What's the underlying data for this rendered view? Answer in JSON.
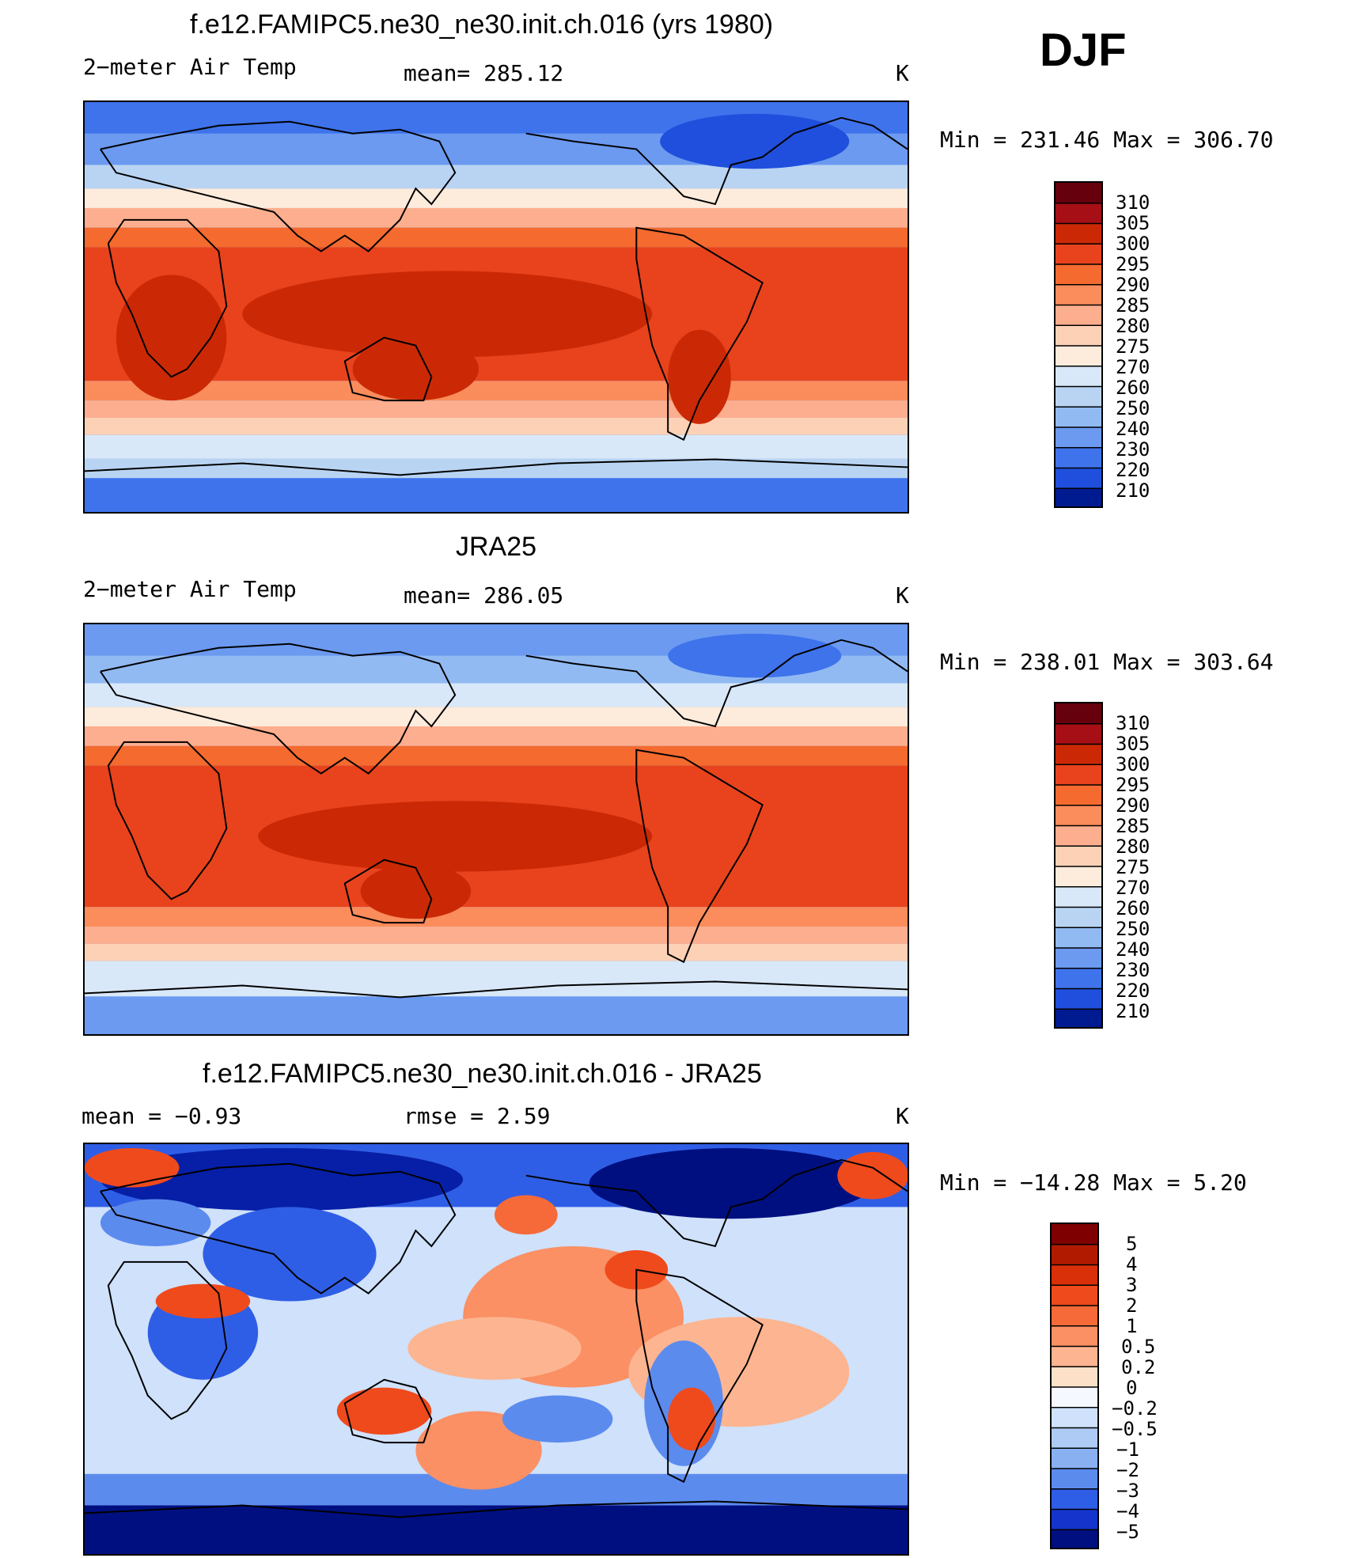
{
  "season": "DJF",
  "panels": [
    {
      "title": "f.e12.FAMIPC5.ne30_ne30.init.ch.016 (yrs 1980)",
      "left_text": "2−meter Air Temp",
      "center_text": "mean=  285.12",
      "units": "K",
      "minmax": "Min  =  231.46  Max  =  306.70",
      "colorbar_labels": [
        "310",
        "305",
        "300",
        "295",
        "290",
        "285",
        "280",
        "275",
        "270",
        "260",
        "250",
        "240",
        "230",
        "220",
        "210"
      ]
    },
    {
      "title": "JRA25",
      "left_text": "2−meter Air Temp",
      "center_text": "mean=  286.05",
      "units": "K",
      "minmax": "Min  =  238.01  Max  =  303.64",
      "colorbar_labels": [
        "310",
        "305",
        "300",
        "295",
        "290",
        "285",
        "280",
        "275",
        "270",
        "260",
        "250",
        "240",
        "230",
        "220",
        "210"
      ]
    },
    {
      "title": "f.e12.FAMIPC5.ne30_ne30.init.ch.016 - JRA25",
      "left_text": "mean  =    −0.93",
      "center_text": "rmse  =     2.59",
      "units": "K",
      "minmax": "Min  =  −14.28  Max  =      5.20",
      "colorbar_labels": [
        "5",
        "4",
        "3",
        "2",
        "1",
        "0.5",
        "0.2",
        "0",
        "−0.2",
        "−0.5",
        "−1",
        "−2",
        "−3",
        "−4",
        "−5"
      ]
    }
  ],
  "colors": {
    "temp_scale": [
      "#67000d",
      "#a50f15",
      "#cb2906",
      "#e8431d",
      "#f46a2f",
      "#fb8c5c",
      "#fcae8e",
      "#fdd1b6",
      "#fdebdc",
      "#d8e8f8",
      "#b9d4f3",
      "#92baf2",
      "#6b9af0",
      "#3f73ec",
      "#1f4fdc",
      "#0c2fbc",
      "#001a8f"
    ],
    "diff_scale": [
      "#7f0000",
      "#b21a00",
      "#d9300a",
      "#ef4a1c",
      "#f56a38",
      "#fa9064",
      "#fcb590",
      "#fde0c8",
      "#f5f8ff",
      "#cfe1fb",
      "#aecbf6",
      "#89b1f2",
      "#5c8bee",
      "#2f5ee6",
      "#1434cc",
      "#061fa6",
      "#000f80"
    ]
  }
}
